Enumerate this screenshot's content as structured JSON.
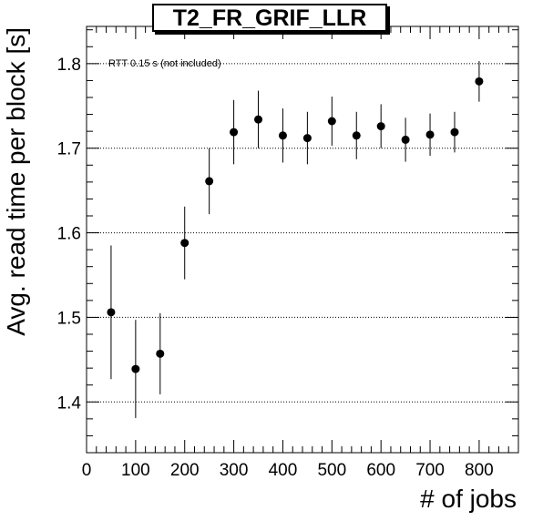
{
  "chart_data": {
    "type": "scatter",
    "title": "T2_FR_GRIF_LLR",
    "xlabel": "# of jobs",
    "ylabel": "Avg. read time per block [s]",
    "annotation": "RTT 0.15 s (not included)",
    "xlim": [
      0,
      880
    ],
    "ylim": [
      1.34,
      1.844
    ],
    "xticks": [
      0,
      100,
      200,
      300,
      400,
      500,
      600,
      700,
      800
    ],
    "yticks": [
      1.4,
      1.5,
      1.6,
      1.7,
      1.8
    ],
    "grid": "horizontal-dotted",
    "series": [
      {
        "x": [
          50,
          100,
          150,
          200,
          250,
          300,
          350,
          400,
          450,
          500,
          550,
          600,
          650,
          700,
          750,
          800
        ],
        "y": [
          1.506,
          1.439,
          1.457,
          1.588,
          1.661,
          1.719,
          1.734,
          1.715,
          1.712,
          1.732,
          1.715,
          1.726,
          1.71,
          1.716,
          1.719,
          1.779
        ],
        "err_low": [
          0.079,
          0.058,
          0.048,
          0.043,
          0.039,
          0.038,
          0.034,
          0.032,
          0.031,
          0.029,
          0.028,
          0.026,
          0.026,
          0.025,
          0.024,
          0.024
        ],
        "err_high": [
          0.079,
          0.058,
          0.048,
          0.043,
          0.039,
          0.038,
          0.034,
          0.032,
          0.031,
          0.029,
          0.028,
          0.026,
          0.026,
          0.025,
          0.024,
          0.024
        ]
      }
    ]
  }
}
